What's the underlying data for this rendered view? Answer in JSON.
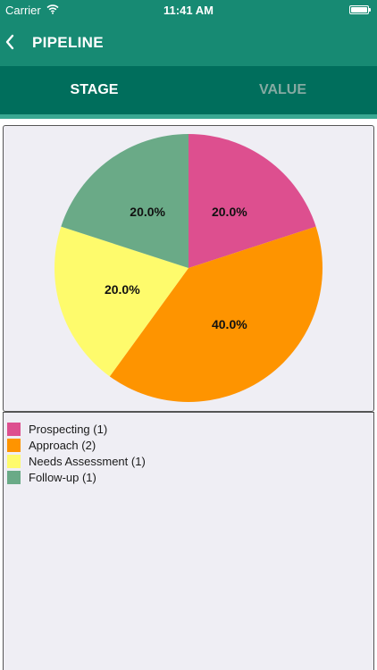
{
  "status_bar": {
    "carrier": "Carrier",
    "time": "11:41 AM",
    "icons": [
      "wifi-icon",
      "battery-icon"
    ]
  },
  "nav": {
    "title": "PIPELINE",
    "back_icon": "chevron-left-icon"
  },
  "tabs": [
    {
      "label": "STAGE",
      "selected": true
    },
    {
      "label": "VALUE",
      "selected": false
    }
  ],
  "colors": {
    "nav_background": "#178a73",
    "tab_background": "#006e5c",
    "tab_indicator": "#3aa892",
    "panel_background": "#efeef4"
  },
  "chart_data": {
    "type": "pie",
    "slices": [
      {
        "label": "Prospecting (1)",
        "value": 1,
        "percent_label": "20.0%",
        "color": "#dd4f8f"
      },
      {
        "label": "Approach (2)",
        "value": 2,
        "percent_label": "40.0%",
        "color": "#fe9400"
      },
      {
        "label": "Needs Assessment (1)",
        "value": 1,
        "percent_label": "20.0%",
        "color": "#fefb6c"
      },
      {
        "label": "Follow-up (1)",
        "value": 1,
        "percent_label": "20.0%",
        "color": "#6aaa87"
      }
    ],
    "legend_position": "bottom-left"
  }
}
